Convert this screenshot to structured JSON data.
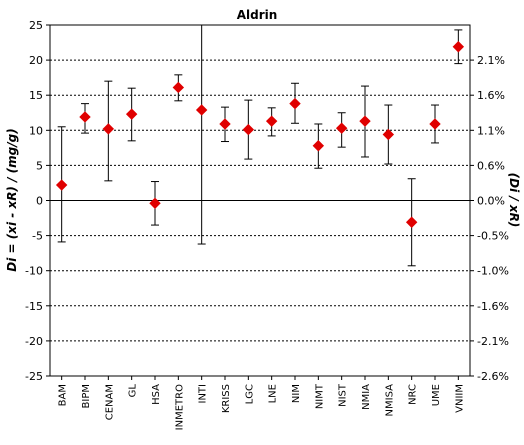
{
  "chart_data": {
    "type": "scatter",
    "title": "Aldrin",
    "ylabel_left": "Di = (xi - xR) / (mg/g)",
    "ylabel_right": "(Di / xR)",
    "ylim": [
      -25,
      25
    ],
    "yticks": [
      25,
      20,
      15,
      10,
      5,
      0,
      -5,
      -10,
      -15,
      -20,
      -25
    ],
    "right_ticks": [
      {
        "y": 20,
        "label": "2.1%"
      },
      {
        "y": 15,
        "label": "1.6%"
      },
      {
        "y": 10,
        "label": "1.1%"
      },
      {
        "y": 5,
        "label": "0.6%"
      },
      {
        "y": 0,
        "label": "0.0%"
      },
      {
        "y": -5,
        "label": "-0.5%"
      },
      {
        "y": -10,
        "label": "-1.0%"
      },
      {
        "y": -15,
        "label": "-1.6%"
      },
      {
        "y": -20,
        "label": "-2.1%"
      },
      {
        "y": -25,
        "label": "-2.6%"
      }
    ],
    "grid": "dashed horizontal",
    "marker_color": "#e00000",
    "categories": [
      "BAM",
      "BIPM",
      "CENAM",
      "GL",
      "HSA",
      "INMETRO",
      "INTI",
      "KRISS",
      "LGC",
      "LNE",
      "NIM",
      "NIMT",
      "NIST",
      "NMIA",
      "NMISA",
      "NRC",
      "UME",
      "VNIIM"
    ],
    "values": [
      2.2,
      11.9,
      10.2,
      12.3,
      -0.4,
      16.1,
      12.9,
      10.9,
      10.1,
      11.3,
      13.8,
      7.8,
      10.3,
      11.3,
      9.4,
      -3.1,
      10.9,
      21.9
    ],
    "err_low": [
      -5.9,
      9.6,
      2.8,
      8.5,
      -3.5,
      14.2,
      -6.2,
      8.4,
      5.9,
      9.2,
      11.0,
      4.6,
      7.6,
      6.2,
      5.2,
      -9.3,
      8.2,
      19.5
    ],
    "err_high": [
      10.5,
      13.8,
      17.0,
      16.0,
      2.7,
      17.9,
      25.7,
      13.3,
      14.3,
      13.2,
      16.7,
      10.9,
      12.5,
      16.3,
      13.6,
      3.1,
      13.6,
      24.3
    ]
  }
}
